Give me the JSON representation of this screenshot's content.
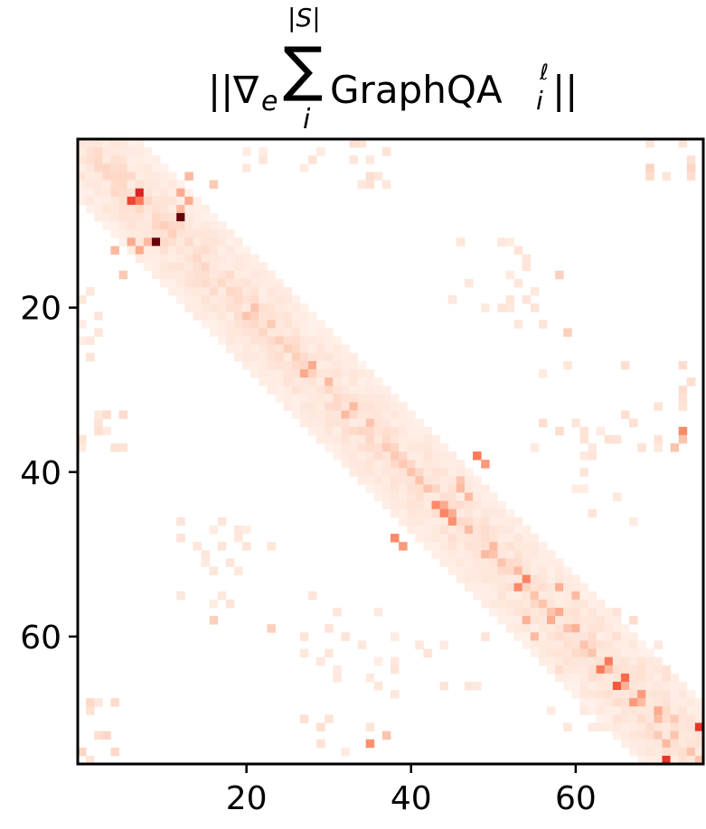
{
  "chart_data": {
    "type": "heatmap",
    "title_parts": {
      "bars_left": "||",
      "nabla": "∇",
      "sub_e": "e",
      "sigma": "∑",
      "upper_limit": "|S|",
      "lower_limit": "i",
      "name": "GraphQA",
      "sup_ell": "ℓ",
      "sub_i": "i",
      "bars_right": "||"
    },
    "xlabel": "",
    "ylabel": "",
    "size": [
      76,
      76
    ],
    "xlim": [
      -0.5,
      75.5
    ],
    "ylim": [
      75.5,
      -0.5
    ],
    "x_ticks": [
      20,
      40,
      60
    ],
    "y_ticks": [
      20,
      40,
      60
    ],
    "colormap": [
      "#fff5f0",
      "#fee0d2",
      "#fcbba1",
      "#fc9272",
      "#fb6a4a",
      "#ef3b2c",
      "#cb181d",
      "#a50f15",
      "#67000d"
    ],
    "diagonal_band": {
      "halfwidth": 7,
      "value_near": 0.12,
      "value_far": 0.04
    },
    "cells": [
      [
        9,
        12,
        1.0
      ],
      [
        12,
        9,
        1.0
      ],
      [
        6,
        7,
        0.7
      ],
      [
        7,
        6,
        0.6
      ],
      [
        7,
        7,
        0.45
      ],
      [
        71,
        75,
        0.65
      ],
      [
        75,
        71,
        0.65
      ],
      [
        66,
        65,
        0.55
      ],
      [
        65,
        66,
        0.5
      ],
      [
        63,
        64,
        0.45
      ],
      [
        64,
        63,
        0.45
      ],
      [
        44,
        43,
        0.4
      ],
      [
        45,
        44,
        0.42
      ],
      [
        46,
        45,
        0.38
      ],
      [
        38,
        48,
        0.45
      ],
      [
        48,
        38,
        0.4
      ],
      [
        53,
        54,
        0.42
      ],
      [
        54,
        53,
        0.4
      ],
      [
        6,
        12,
        0.3
      ],
      [
        12,
        6,
        0.3
      ],
      [
        8,
        12,
        0.25
      ],
      [
        12,
        8,
        0.25
      ],
      [
        7,
        13,
        0.3
      ],
      [
        13,
        7,
        0.3
      ],
      [
        13,
        4,
        0.25
      ],
      [
        4,
        13,
        0.25
      ],
      [
        16,
        5,
        0.2
      ],
      [
        5,
        16,
        0.2
      ],
      [
        33,
        76,
        0.45
      ],
      [
        76,
        33,
        0.4
      ],
      [
        35,
        73,
        0.4
      ],
      [
        73,
        35,
        0.38
      ],
      [
        39,
        49,
        0.35
      ],
      [
        49,
        39,
        0.35
      ],
      [
        42,
        46,
        0.25
      ],
      [
        43,
        47,
        0.25
      ],
      [
        41,
        46,
        0.22
      ],
      [
        54,
        58,
        0.28
      ],
      [
        58,
        54,
        0.28
      ],
      [
        55,
        60,
        0.25
      ],
      [
        60,
        55,
        0.25
      ],
      [
        36,
        73,
        0.22
      ],
      [
        37,
        72,
        0.22
      ],
      [
        72,
        37,
        0.22
      ],
      [
        67,
        68,
        0.35
      ],
      [
        68,
        67,
        0.35
      ],
      [
        69,
        70,
        0.3
      ],
      [
        70,
        72,
        0.2
      ],
      [
        72,
        70,
        0.2
      ],
      [
        73,
        71,
        0.25
      ],
      [
        57,
        58,
        0.3
      ],
      [
        58,
        57,
        0.3
      ],
      [
        59,
        60,
        0.28
      ],
      [
        28,
        27,
        0.3
      ],
      [
        27,
        28,
        0.3
      ],
      [
        29,
        30,
        0.25
      ],
      [
        21,
        20,
        0.22
      ],
      [
        20,
        21,
        0.22
      ],
      [
        22,
        23,
        0.2
      ],
      [
        32,
        33,
        0.25
      ],
      [
        33,
        32,
        0.25
      ],
      [
        34,
        35,
        0.22
      ],
      [
        49,
        50,
        0.25
      ],
      [
        50,
        49,
        0.25
      ],
      [
        52,
        53,
        0.25
      ],
      [
        23,
        59,
        0.18
      ],
      [
        59,
        23,
        0.18
      ],
      [
        16,
        58,
        0.18
      ],
      [
        58,
        16,
        0.18
      ],
      [
        2,
        2,
        0.15
      ],
      [
        1,
        1,
        0.12
      ],
      [
        3,
        3,
        0.12
      ],
      [
        5,
        5,
        0.15
      ],
      [
        6,
        4,
        0.15
      ],
      [
        4,
        6,
        0.15
      ],
      [
        10,
        10,
        0.18
      ],
      [
        11,
        11,
        0.18
      ],
      [
        24,
        24,
        0.18
      ],
      [
        25,
        25,
        0.18
      ],
      [
        26,
        26,
        0.18
      ],
      [
        37,
        37,
        0.2
      ],
      [
        38,
        38,
        0.2
      ],
      [
        39,
        39,
        0.2
      ],
      [
        40,
        40,
        0.22
      ],
      [
        41,
        41,
        0.22
      ],
      [
        42,
        42,
        0.22
      ],
      [
        44,
        44,
        0.3
      ],
      [
        45,
        45,
        0.3
      ],
      [
        47,
        47,
        0.25
      ],
      [
        50,
        50,
        0.22
      ],
      [
        51,
        51,
        0.22
      ],
      [
        55,
        55,
        0.22
      ],
      [
        56,
        56,
        0.22
      ],
      [
        57,
        57,
        0.22
      ],
      [
        59,
        59,
        0.22
      ],
      [
        61,
        61,
        0.22
      ],
      [
        62,
        62,
        0.22
      ],
      [
        64,
        64,
        0.25
      ],
      [
        66,
        66,
        0.28
      ],
      [
        68,
        68,
        0.25
      ],
      [
        70,
        70,
        0.25
      ],
      [
        72,
        72,
        0.22
      ],
      [
        74,
        74,
        0.22
      ],
      [
        75,
        75,
        0.22
      ],
      [
        12,
        10,
        0.15
      ],
      [
        10,
        12,
        0.15
      ],
      [
        14,
        14,
        0.15
      ],
      [
        17,
        17,
        0.15
      ],
      [
        18,
        18,
        0.15
      ],
      [
        19,
        19,
        0.15
      ],
      [
        30,
        30,
        0.15
      ],
      [
        31,
        31,
        0.15
      ],
      [
        35,
        35,
        0.15
      ]
    ],
    "scatter_groups": [
      {
        "r": [
          0,
          6
        ],
        "c": [
          33,
          38
        ],
        "n": 14,
        "v": 0.1
      },
      {
        "r": [
          33,
          38
        ],
        "c": [
          0,
          6
        ],
        "n": 14,
        "v": 0.1
      },
      {
        "r": [
          0,
          4
        ],
        "c": [
          18,
          30
        ],
        "n": 8,
        "v": 0.08
      },
      {
        "r": [
          18,
          30
        ],
        "c": [
          0,
          4
        ],
        "n": 8,
        "v": 0.08
      },
      {
        "r": [
          12,
          24
        ],
        "c": [
          45,
          57
        ],
        "n": 14,
        "v": 0.08
      },
      {
        "r": [
          45,
          57
        ],
        "c": [
          12,
          24
        ],
        "n": 14,
        "v": 0.08
      },
      {
        "r": [
          27,
          38
        ],
        "c": [
          55,
          75
        ],
        "n": 22,
        "v": 0.1
      },
      {
        "r": [
          55,
          75
        ],
        "c": [
          27,
          38
        ],
        "n": 22,
        "v": 0.1
      },
      {
        "r": [
          62,
          72
        ],
        "c": [
          57,
          66
        ],
        "n": 18,
        "v": 0.1
      },
      {
        "r": [
          57,
          66
        ],
        "c": [
          62,
          72
        ],
        "n": 18,
        "v": 0.1
      },
      {
        "r": [
          68,
          76
        ],
        "c": [
          0,
          5
        ],
        "n": 10,
        "v": 0.12
      },
      {
        "r": [
          0,
          5
        ],
        "c": [
          68,
          76
        ],
        "n": 10,
        "v": 0.12
      },
      {
        "r": [
          46,
          58
        ],
        "c": [
          12,
          20
        ],
        "n": 8,
        "v": 0.08
      },
      {
        "r": [
          12,
          20
        ],
        "c": [
          46,
          58
        ],
        "n": 8,
        "v": 0.08
      },
      {
        "r": [
          60,
          68
        ],
        "c": [
          34,
          50
        ],
        "n": 12,
        "v": 0.08
      },
      {
        "r": [
          34,
          50
        ],
        "c": [
          60,
          68
        ],
        "n": 12,
        "v": 0.08
      }
    ]
  }
}
